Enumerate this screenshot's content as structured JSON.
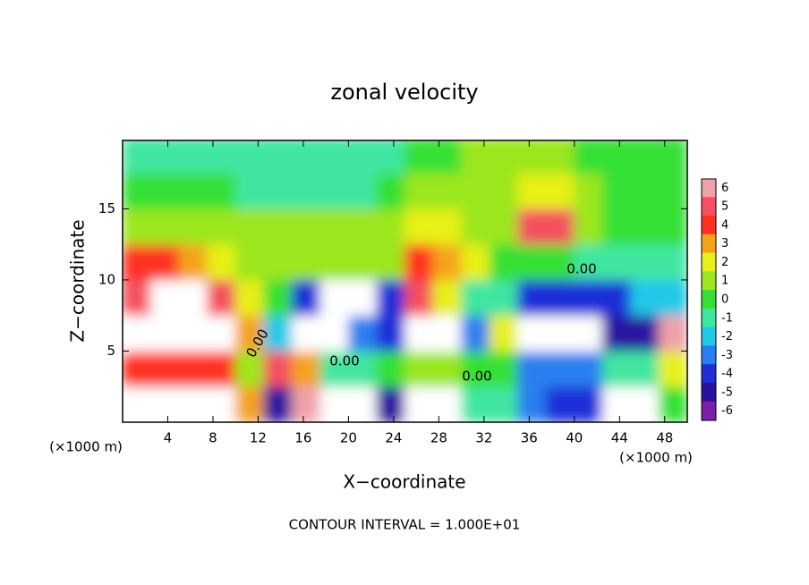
{
  "chart_data": {
    "type": "heatmap",
    "title": "zonal velocity",
    "xlabel": "X−coordinate",
    "ylabel": "Z−coordinate",
    "x_unit": "(×1000 m)",
    "y_unit": "(×1000 m)",
    "footnote": "CONTOUR INTERVAL = 1.000E+01",
    "contour_labels": [
      "0.00",
      "0.00",
      "0.00",
      "0.00"
    ],
    "xlim": [
      0,
      50
    ],
    "ylim": [
      0,
      19.8
    ],
    "xticks": [
      4,
      8,
      12,
      16,
      20,
      24,
      28,
      32,
      36,
      40,
      44,
      48
    ],
    "yticks": [
      5,
      10,
      15
    ],
    "x": [
      1.25,
      3.75,
      6.25,
      8.75,
      11.25,
      13.75,
      16.25,
      18.75,
      21.25,
      23.75,
      26.25,
      28.75,
      31.25,
      33.75,
      36.25,
      38.75,
      41.25,
      43.75,
      46.25,
      48.75
    ],
    "y": [
      1.25,
      3.75,
      6.25,
      8.75,
      11.25,
      13.75,
      16.25,
      18.75
    ],
    "z": [
      [
        8,
        8,
        8,
        8,
        3,
        -5,
        6,
        8,
        8,
        -5,
        -7,
        -7,
        -1,
        -1,
        -3,
        -4,
        -4,
        8,
        8,
        0
      ],
      [
        4,
        4,
        4,
        4,
        1,
        5,
        3,
        -1,
        -1,
        0,
        1,
        1,
        0,
        0,
        -3,
        -3,
        -3,
        -1,
        -1,
        2
      ],
      [
        8,
        8,
        8,
        8,
        3,
        -2,
        8,
        8,
        -3,
        -4,
        8,
        8,
        -3,
        2,
        -7,
        -7,
        -7,
        -5,
        -5,
        6
      ],
      [
        5,
        8,
        8,
        5,
        2,
        0,
        -4,
        7,
        7,
        -4,
        5,
        2,
        -1,
        -1,
        -4,
        -4,
        -4,
        -4,
        -2,
        -2
      ],
      [
        4,
        4,
        3,
        2,
        1,
        1,
        1,
        1,
        1,
        1,
        4,
        3,
        2,
        0,
        0,
        0,
        -1,
        -1,
        -1,
        -1
      ],
      [
        1,
        1,
        1,
        1,
        0.5,
        0.5,
        0.5,
        0.5,
        0.5,
        1,
        2,
        2,
        1,
        0.5,
        5,
        5,
        1,
        0,
        0,
        0
      ],
      [
        0,
        0,
        0,
        0,
        -1,
        -1,
        -1,
        -1,
        -1,
        0,
        0.5,
        0.5,
        0.5,
        1,
        2,
        2,
        0.5,
        0,
        0,
        0
      ],
      [
        -1,
        -1,
        -1,
        -1,
        -1.5,
        -1.5,
        -1.5,
        -1.5,
        -1.5,
        -1,
        0,
        0,
        0.5,
        0.5,
        0.5,
        0.5,
        -0.5,
        -0.5,
        -0.5,
        -0.5
      ]
    ],
    "colorbar_levels": [
      6,
      5,
      4,
      3,
      2,
      1,
      0,
      -1,
      -2,
      -3,
      -4,
      -5,
      -6
    ],
    "colorbar_colors": [
      "#f0a0a8",
      "#f4505f",
      "#ff3020",
      "#f5a21a",
      "#e8f019",
      "#9be61e",
      "#35e035",
      "#3fe6a0",
      "#21c8e8",
      "#2a7ff0",
      "#1f2fd8",
      "#2a12a0",
      "#7a1fa8"
    ]
  }
}
